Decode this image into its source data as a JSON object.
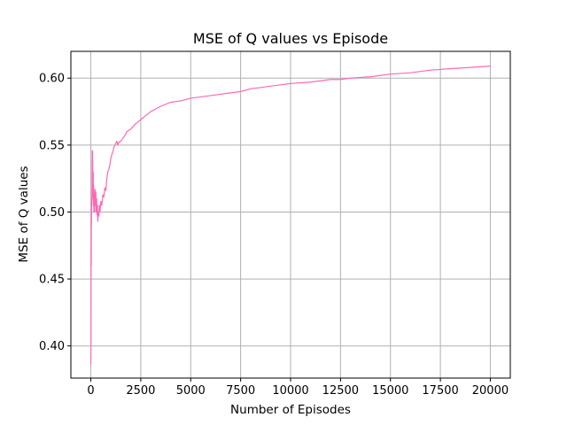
{
  "chart_data": {
    "type": "line",
    "title": "MSE of Q values vs Episode",
    "xlabel": "Number of Episodes",
    "ylabel": "MSE of Q values",
    "xlim": [
      -1000,
      21000
    ],
    "ylim": [
      0.376,
      0.62
    ],
    "xticks": [
      0,
      2500,
      5000,
      7500,
      10000,
      12500,
      15000,
      17500,
      20000
    ],
    "xtick_labels": [
      "0",
      "2500",
      "5000",
      "7500",
      "10000",
      "12500",
      "15000",
      "17500",
      "20000"
    ],
    "yticks": [
      0.4,
      0.45,
      0.5,
      0.55,
      0.6
    ],
    "ytick_labels": [
      "0.40",
      "0.45",
      "0.50",
      "0.55",
      "0.60"
    ],
    "grid": true,
    "colors": {
      "line": "#ff69b4",
      "grid": "#b0b0b0",
      "axes": "#000000"
    },
    "series": [
      {
        "name": "",
        "points": [
          [
            0,
            0.386
          ],
          [
            5,
            0.4
          ],
          [
            10,
            0.45
          ],
          [
            15,
            0.474
          ],
          [
            20,
            0.46
          ],
          [
            25,
            0.5
          ],
          [
            30,
            0.49
          ],
          [
            40,
            0.51
          ],
          [
            50,
            0.505
          ],
          [
            60,
            0.52
          ],
          [
            70,
            0.546
          ],
          [
            80,
            0.53
          ],
          [
            90,
            0.545
          ],
          [
            100,
            0.52
          ],
          [
            110,
            0.51
          ],
          [
            120,
            0.53
          ],
          [
            130,
            0.505
          ],
          [
            140,
            0.52
          ],
          [
            150,
            0.5
          ],
          [
            170,
            0.515
          ],
          [
            190,
            0.5
          ],
          [
            210,
            0.517
          ],
          [
            230,
            0.505
          ],
          [
            250,
            0.515
          ],
          [
            270,
            0.5
          ],
          [
            290,
            0.51
          ],
          [
            310,
            0.498
          ],
          [
            330,
            0.505
          ],
          [
            350,
            0.493
          ],
          [
            370,
            0.5
          ],
          [
            400,
            0.497
          ],
          [
            430,
            0.505
          ],
          [
            460,
            0.5
          ],
          [
            500,
            0.508
          ],
          [
            550,
            0.505
          ],
          [
            600,
            0.513
          ],
          [
            650,
            0.511
          ],
          [
            700,
            0.518
          ],
          [
            750,
            0.516
          ],
          [
            800,
            0.525
          ],
          [
            850,
            0.53
          ],
          [
            900,
            0.532
          ],
          [
            950,
            0.535
          ],
          [
            1000,
            0.54
          ],
          [
            1050,
            0.543
          ],
          [
            1100,
            0.545
          ],
          [
            1150,
            0.548
          ],
          [
            1200,
            0.55
          ],
          [
            1250,
            0.551
          ],
          [
            1300,
            0.553
          ],
          [
            1350,
            0.55
          ],
          [
            1400,
            0.552
          ],
          [
            1500,
            0.553
          ],
          [
            1600,
            0.555
          ],
          [
            1700,
            0.557
          ],
          [
            1800,
            0.56
          ],
          [
            2000,
            0.562
          ],
          [
            2250,
            0.566
          ],
          [
            2500,
            0.569
          ],
          [
            2750,
            0.572
          ],
          [
            3000,
            0.575
          ],
          [
            3500,
            0.579
          ],
          [
            4000,
            0.582
          ],
          [
            4500,
            0.583
          ],
          [
            5000,
            0.585
          ],
          [
            6000,
            0.587
          ],
          [
            7000,
            0.589
          ],
          [
            7500,
            0.59
          ],
          [
            8000,
            0.592
          ],
          [
            8500,
            0.593
          ],
          [
            9000,
            0.594
          ],
          [
            10000,
            0.596
          ],
          [
            11000,
            0.597
          ],
          [
            12000,
            0.599
          ],
          [
            12500,
            0.599
          ],
          [
            13000,
            0.6
          ],
          [
            14000,
            0.601
          ],
          [
            15000,
            0.603
          ],
          [
            16000,
            0.604
          ],
          [
            17000,
            0.606
          ],
          [
            18000,
            0.607
          ],
          [
            19000,
            0.608
          ],
          [
            20000,
            0.609
          ]
        ]
      }
    ]
  }
}
